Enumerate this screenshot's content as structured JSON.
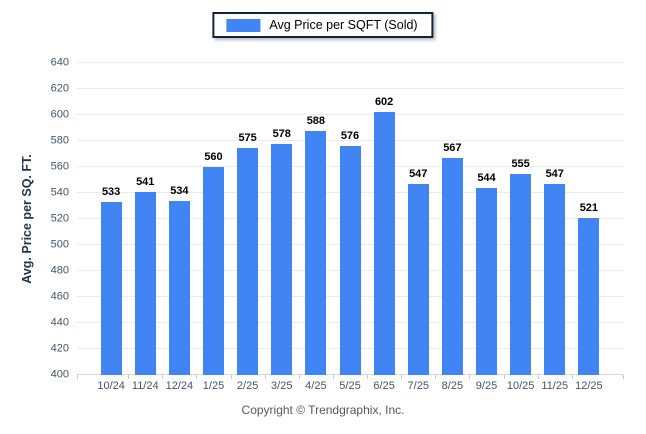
{
  "legend": {
    "label": "Avg Price per SQFT (Sold)"
  },
  "chart_data": {
    "type": "bar",
    "title": "Avg Price per SQFT (Sold)",
    "ylabel": "Avg. Price per SQ. FT.",
    "xlabel": "",
    "categories": [
      "10/24",
      "11/24",
      "12/24",
      "1/25",
      "2/25",
      "3/25",
      "4/25",
      "5/25",
      "6/25",
      "7/25",
      "8/25",
      "9/25",
      "10/25",
      "11/25",
      "12/25"
    ],
    "values": [
      533,
      541,
      534,
      560,
      575,
      578,
      588,
      576,
      602,
      547,
      567,
      544,
      555,
      547,
      521
    ],
    "ylim": [
      400,
      640
    ],
    "ytick_step": 20,
    "grid": true,
    "legend_position": "top-center",
    "colors": {
      "bar": "#4184f3",
      "gridline": "#ececec",
      "axis_line": "#d6d6d6",
      "tick_mark": "#c6cbd4",
      "axis_label": "#44546a",
      "value_label": "#000000",
      "y_title": "#1f3550",
      "legend_border": "#16243a",
      "copyright": "#595959"
    }
  },
  "footer": {
    "copyright": "Copyright © Trendgraphix, Inc."
  }
}
